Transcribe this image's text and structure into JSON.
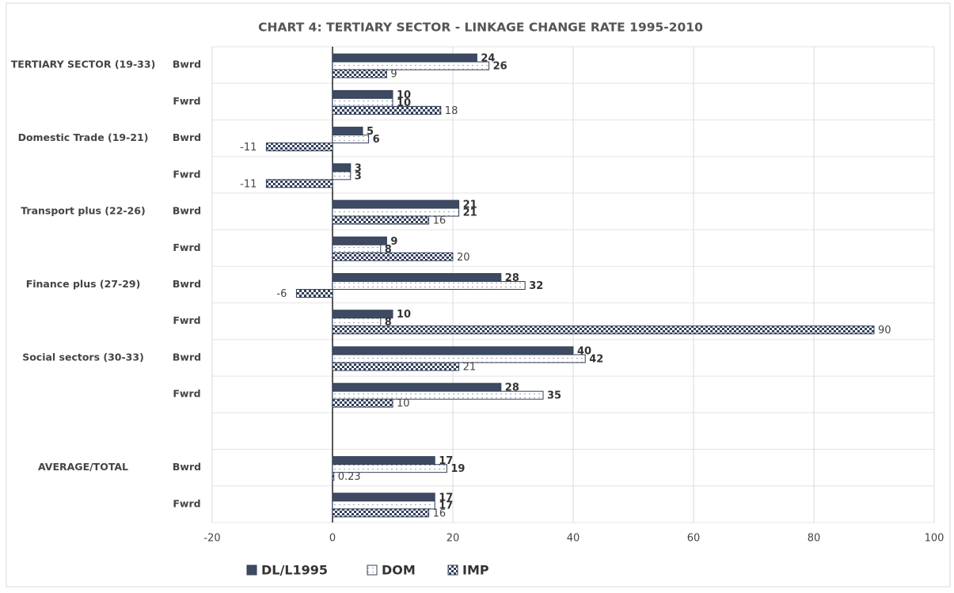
{
  "chart_data": {
    "type": "hbar",
    "title": "CHART 4: TERTIARY SECTOR - LINKAGE CHANGE RATE 1995-2010",
    "groups": [
      "TERTIARY SECTOR (19-33)",
      null,
      "Domestic Trade (19-21)",
      null,
      "Transport plus (22-26)",
      null,
      "Finance plus (27-29)",
      null,
      "Social sectors (30-33)",
      null,
      null,
      "AVERAGE/TOTAL",
      null
    ],
    "categories": [
      "Bwrd",
      "Fwrd",
      "Bwrd",
      "Fwrd",
      "Bwrd",
      "Fwrd",
      "Bwrd",
      "Fwrd",
      "Bwrd",
      "Fwrd",
      null,
      "Bwrd",
      "Fwrd"
    ],
    "series": [
      {
        "name": "DL/L1995",
        "color": "#3d4a62",
        "values": [
          24,
          10,
          5,
          3,
          21,
          9,
          28,
          10,
          40,
          28,
          null,
          17,
          17
        ]
      },
      {
        "name": "DOM",
        "color": "#ffffff",
        "values": [
          26,
          10,
          6,
          3,
          21,
          8,
          32,
          8,
          42,
          35,
          null,
          19,
          17
        ]
      },
      {
        "name": "IMP",
        "color": "#33405a",
        "values": [
          9,
          18,
          -11,
          -11,
          16,
          20,
          -6,
          90,
          21,
          10,
          null,
          0.23,
          16
        ]
      }
    ],
    "xlim": [
      -20,
      100
    ],
    "xticks": [
      -20,
      0,
      20,
      40,
      60,
      80,
      100
    ],
    "grid": true,
    "legend": "bottom"
  }
}
